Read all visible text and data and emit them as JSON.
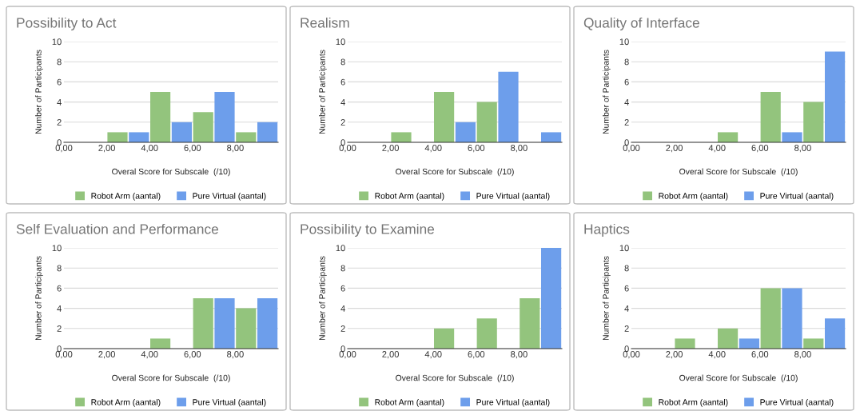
{
  "chart_data": [
    {
      "type": "bar",
      "title": "Possibility to Act",
      "xlabel": "Overal Score for Subscale  (/10)",
      "ylabel": "Number of Participants",
      "x": [
        1,
        3,
        5,
        7,
        9
      ],
      "series": [
        {
          "name": "Robot Arm (aantal)",
          "color": "#93c47d",
          "values": [
            0,
            1,
            5,
            3,
            1
          ]
        },
        {
          "name": "Pure Virtual (aantal)",
          "color": "#6d9eeb",
          "values": [
            0,
            1,
            2,
            5,
            2
          ]
        }
      ],
      "xlim": [
        0,
        10
      ],
      "xticks": [
        {
          "value": 0,
          "label": "0,00"
        },
        {
          "value": 2,
          "label": "2,00"
        },
        {
          "value": 4,
          "label": "4,00"
        },
        {
          "value": 6,
          "label": "6,00"
        },
        {
          "value": 8,
          "label": "8,00"
        }
      ],
      "ylim": [
        0,
        10
      ],
      "yticks": [
        0,
        2,
        4,
        6,
        8,
        10
      ],
      "grid": "y",
      "legend": "bottom"
    },
    {
      "type": "bar",
      "title": "Realism",
      "xlabel": "Overal Score for Subscale  (/10)",
      "ylabel": "Number of Participants",
      "x": [
        1,
        3,
        5,
        7,
        9
      ],
      "series": [
        {
          "name": "Robot Arm (aantal)",
          "color": "#93c47d",
          "values": [
            0,
            1,
            5,
            4,
            0
          ]
        },
        {
          "name": "Pure Virtual (aantal)",
          "color": "#6d9eeb",
          "values": [
            0,
            0,
            2,
            7,
            1
          ]
        }
      ],
      "xlim": [
        0,
        10
      ],
      "xticks": [
        {
          "value": 0,
          "label": "0,00"
        },
        {
          "value": 2,
          "label": "2,00"
        },
        {
          "value": 4,
          "label": "4,00"
        },
        {
          "value": 6,
          "label": "6,00"
        },
        {
          "value": 8,
          "label": "8,00"
        }
      ],
      "ylim": [
        0,
        10
      ],
      "yticks": [
        0,
        2,
        4,
        6,
        8,
        10
      ],
      "grid": "y",
      "legend": "bottom"
    },
    {
      "type": "bar",
      "title": "Quality of Interface",
      "xlabel": "Overal Score for Subscale  (/10)",
      "ylabel": "Number of Participants",
      "x": [
        1,
        3,
        5,
        7,
        9
      ],
      "series": [
        {
          "name": "Robot Arm (aantal)",
          "color": "#93c47d",
          "values": [
            0,
            0,
            1,
            5,
            4
          ]
        },
        {
          "name": "Pure Virtual (aantal)",
          "color": "#6d9eeb",
          "values": [
            0,
            0,
            0,
            1,
            9
          ]
        }
      ],
      "xlim": [
        0,
        10
      ],
      "xticks": [
        {
          "value": 0,
          "label": "0,00"
        },
        {
          "value": 2,
          "label": "2,00"
        },
        {
          "value": 4,
          "label": "4,00"
        },
        {
          "value": 6,
          "label": "6,00"
        },
        {
          "value": 8,
          "label": "8,00"
        }
      ],
      "ylim": [
        0,
        10
      ],
      "yticks": [
        0,
        2,
        4,
        6,
        8,
        10
      ],
      "grid": "y",
      "legend": "bottom"
    },
    {
      "type": "bar",
      "title": "Self Evaluation and Performance",
      "xlabel": "Overal Score for Subscale  (/10)",
      "ylabel": "Number of Participants",
      "x": [
        1,
        3,
        5,
        7,
        9
      ],
      "series": [
        {
          "name": "Robot Arm (aantal)",
          "color": "#93c47d",
          "values": [
            0,
            0,
            1,
            5,
            4
          ]
        },
        {
          "name": "Pure Virtual (aantal)",
          "color": "#6d9eeb",
          "values": [
            0,
            0,
            0,
            5,
            5
          ]
        }
      ],
      "xlim": [
        0,
        10
      ],
      "xticks": [
        {
          "value": 0,
          "label": "0,00"
        },
        {
          "value": 2,
          "label": "2,00"
        },
        {
          "value": 4,
          "label": "4,00"
        },
        {
          "value": 6,
          "label": "6,00"
        },
        {
          "value": 8,
          "label": "8,00"
        }
      ],
      "ylim": [
        0,
        10
      ],
      "yticks": [
        0,
        2,
        4,
        6,
        8,
        10
      ],
      "grid": "y",
      "legend": "bottom"
    },
    {
      "type": "bar",
      "title": "Possibility to Examine",
      "xlabel": "Overal Score for Subscale  (/10)",
      "ylabel": "Number of Participants",
      "x": [
        1,
        3,
        5,
        7,
        9
      ],
      "series": [
        {
          "name": "Robot Arm (aantal)",
          "color": "#93c47d",
          "values": [
            0,
            0,
            2,
            3,
            5
          ]
        },
        {
          "name": "Pure Virtual (aantal)",
          "color": "#6d9eeb",
          "values": [
            0,
            0,
            0,
            0,
            10
          ]
        }
      ],
      "xlim": [
        0,
        10
      ],
      "xticks": [
        {
          "value": 0,
          "label": "0,00"
        },
        {
          "value": 2,
          "label": "2,00"
        },
        {
          "value": 4,
          "label": "4,00"
        },
        {
          "value": 6,
          "label": "6,00"
        },
        {
          "value": 8,
          "label": "8,00"
        }
      ],
      "ylim": [
        0,
        10
      ],
      "yticks": [
        0,
        2,
        4,
        6,
        8,
        10
      ],
      "grid": "y",
      "legend": "bottom"
    },
    {
      "type": "bar",
      "title": "Haptics",
      "xlabel": "Overal Score for Subscale  (/10)",
      "ylabel": "Number of Participants",
      "x": [
        1,
        3,
        5,
        7,
        9
      ],
      "series": [
        {
          "name": "Robot Arm (aantal)",
          "color": "#93c47d",
          "values": [
            0,
            1,
            2,
            6,
            1
          ]
        },
        {
          "name": "Pure Virtual (aantal)",
          "color": "#6d9eeb",
          "values": [
            0,
            0,
            1,
            6,
            3
          ]
        }
      ],
      "xlim": [
        0,
        10
      ],
      "xticks": [
        {
          "value": 0,
          "label": "0,00"
        },
        {
          "value": 2,
          "label": "2,00"
        },
        {
          "value": 4,
          "label": "4,00"
        },
        {
          "value": 6,
          "label": "6,00"
        },
        {
          "value": 8,
          "label": "8,00"
        }
      ],
      "ylim": [
        0,
        10
      ],
      "yticks": [
        0,
        2,
        4,
        6,
        8,
        10
      ],
      "grid": "y",
      "legend": "bottom"
    }
  ]
}
